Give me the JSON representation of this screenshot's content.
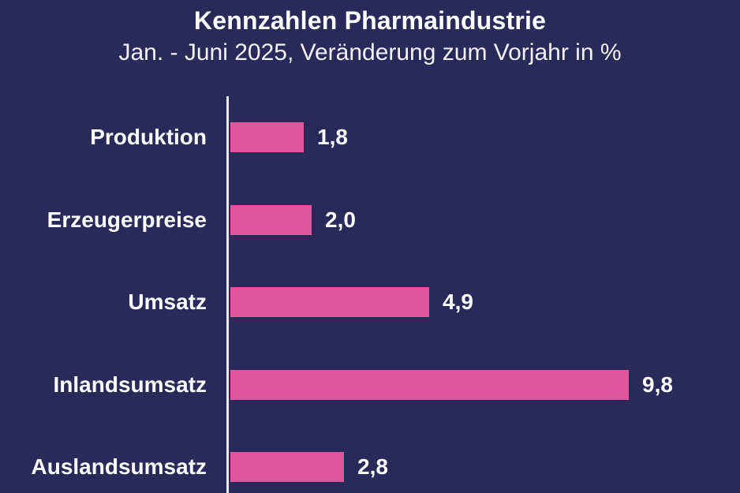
{
  "chart_data": {
    "type": "bar",
    "orientation": "horizontal",
    "title": "Kennzahlen Pharmaindustrie",
    "subtitle": "Jan. - Juni 2025, Veränderung zum Vorjahr in %",
    "categories": [
      "Produktion",
      "Erzeugerpreise",
      "Umsatz",
      "Inlandsumsatz",
      "Auslandsumsatz"
    ],
    "values": [
      1.8,
      2.0,
      4.9,
      9.8,
      2.8
    ],
    "value_labels": [
      "1,8",
      "2,0",
      "4,9",
      "9,8",
      "2,8"
    ],
    "xlabel": "",
    "ylabel": "",
    "xlim": [
      0,
      12.5
    ],
    "grid": false,
    "legend": false,
    "colors": {
      "background": "#29295a",
      "bar": "#e0559b",
      "text": "#ffffff",
      "axis_line": "#ebebee"
    }
  }
}
